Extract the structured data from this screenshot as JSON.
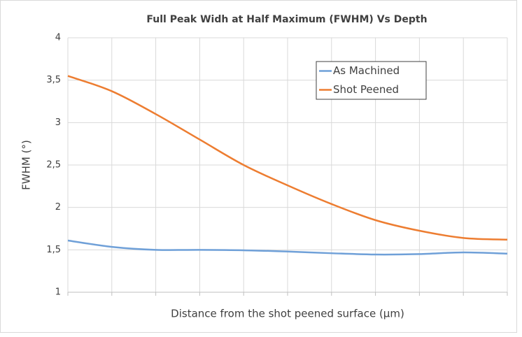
{
  "chart_data": {
    "type": "line",
    "title": "Full Peak Widh at Half Maximum (FWHM) Vs Depth",
    "x_label": "Distance from the shot peened surface (μm)",
    "y_label": "FWHM (°)",
    "categories": [
      null,
      null,
      null,
      null,
      null,
      null,
      null,
      null,
      null,
      null,
      null
    ],
    "series": [
      {
        "name": "As Machined",
        "color": "#6fa0d8",
        "values": [
          1.61,
          1.535,
          1.5,
          1.5,
          1.495,
          1.48,
          1.46,
          1.445,
          1.45,
          1.47,
          1.455
        ]
      },
      {
        "name": "Shot Peened",
        "color": "#ed7d31",
        "values": [
          3.55,
          3.37,
          3.1,
          2.8,
          2.5,
          2.26,
          2.04,
          1.85,
          1.725,
          1.64,
          1.62
        ]
      }
    ],
    "ylim": [
      1,
      4
    ],
    "yticks": [
      1,
      {
        "value": 1.5,
        "label": "1,5"
      },
      2,
      {
        "value": 2.5,
        "label": "2,5"
      },
      3,
      {
        "value": 3.5,
        "label": "3,5"
      },
      4
    ],
    "grid": true,
    "legend": "top-right"
  }
}
